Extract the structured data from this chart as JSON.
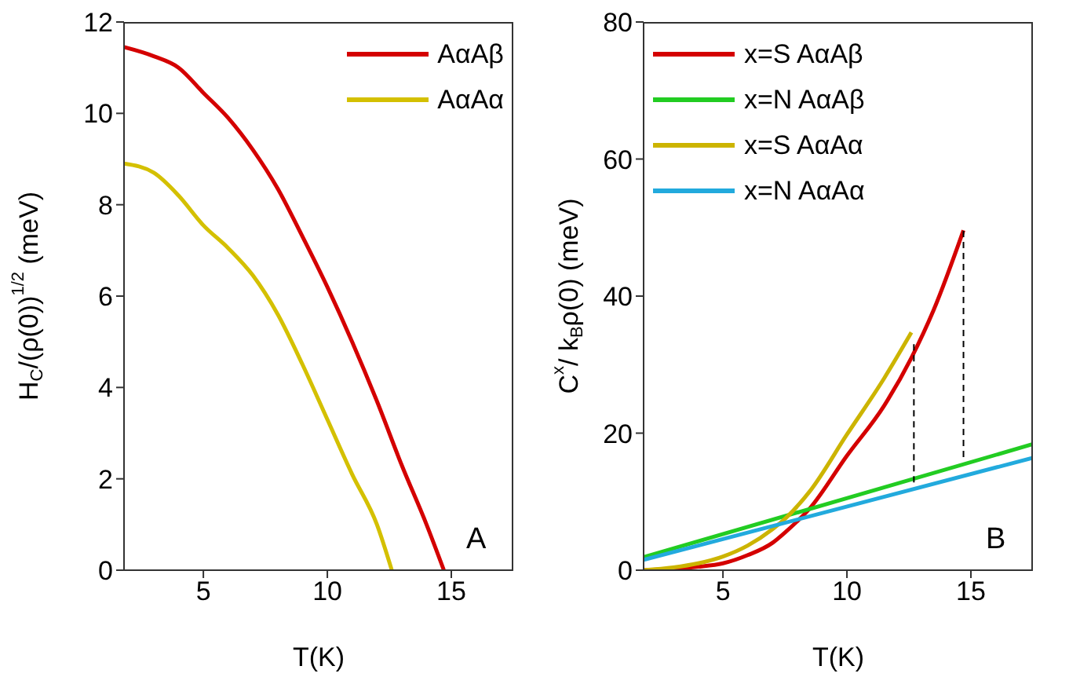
{
  "chart_data": [
    {
      "type": "line",
      "xlabel": "T(K)",
      "ylabel": "H$_{C}$/(ρ(0))$^{1/2}$ (meV)",
      "xlim": [
        1.8,
        17.5
      ],
      "xticks": [
        5,
        10,
        15
      ],
      "ylim": [
        0,
        12
      ],
      "yticks": [
        0,
        2,
        4,
        6,
        8,
        10,
        12
      ],
      "legend": "top right",
      "annotations": [
        "A"
      ],
      "series": [
        {
          "name": "AαAβ",
          "color": "#d40000",
          "x": [
            1.8,
            3,
            4,
            5,
            6,
            7,
            8,
            9,
            10,
            11,
            12,
            13,
            14,
            14.7
          ],
          "values": [
            11.45,
            11.25,
            11.0,
            10.45,
            9.9,
            9.2,
            8.35,
            7.3,
            6.2,
            5.0,
            3.7,
            2.3,
            1.0,
            0
          ]
        },
        {
          "name": "AαAα",
          "color": "#d4c000",
          "x": [
            1.8,
            3,
            4,
            5,
            6,
            7,
            8,
            9,
            10,
            11,
            12,
            12.6
          ],
          "values": [
            8.9,
            8.7,
            8.2,
            7.55,
            7.05,
            6.45,
            5.6,
            4.5,
            3.3,
            2.1,
            1.0,
            0
          ]
        }
      ]
    },
    {
      "type": "line",
      "xlabel": "T(K)",
      "ylabel": "C$^{x}$/ k$_{B}$ρ(0) (meV)",
      "xlim": [
        1.8,
        17.5
      ],
      "xticks": [
        5,
        10,
        15
      ],
      "ylim": [
        0,
        80
      ],
      "yticks": [
        0,
        20,
        40,
        60,
        80
      ],
      "legend": "top left",
      "annotations": [
        "B"
      ],
      "series": [
        {
          "name": "x=S AαAβ",
          "color": "#d40000",
          "x": [
            1.8,
            3,
            4,
            5,
            6,
            7,
            7.5,
            8.5,
            10,
            11.5,
            12.6,
            13.5,
            14.7
          ],
          "values": [
            0,
            0.2,
            0.5,
            1,
            2.2,
            4,
            5.5,
            9,
            16.7,
            24,
            31,
            38,
            49.6
          ]
        },
        {
          "name": "x=N AαAβ",
          "color": "#22cc22",
          "x": [
            1.8,
            17.5
          ],
          "values": [
            1.9,
            18.4
          ]
        },
        {
          "name": "x=S AαAα",
          "color": "#ccb400",
          "x": [
            1.8,
            3,
            4,
            5,
            6,
            7,
            7.5,
            8.5,
            10,
            11.5,
            12.6
          ],
          "values": [
            0,
            0.4,
            1,
            2,
            3.6,
            6,
            7.5,
            11.5,
            19.8,
            28,
            34.7
          ]
        },
        {
          "name": "x=N AαAα",
          "color": "#22aadd",
          "x": [
            1.8,
            17.5
          ],
          "values": [
            1.5,
            16.4
          ]
        },
        {
          "color": "#000000",
          "line_style": "dashed",
          "x": [
            12.7,
            12.7
          ],
          "values": [
            12.8,
            33
          ]
        },
        {
          "color": "#000000",
          "line_style": "dashed",
          "x": [
            14.7,
            14.7
          ],
          "values": [
            16.5,
            49.6
          ]
        }
      ]
    }
  ]
}
